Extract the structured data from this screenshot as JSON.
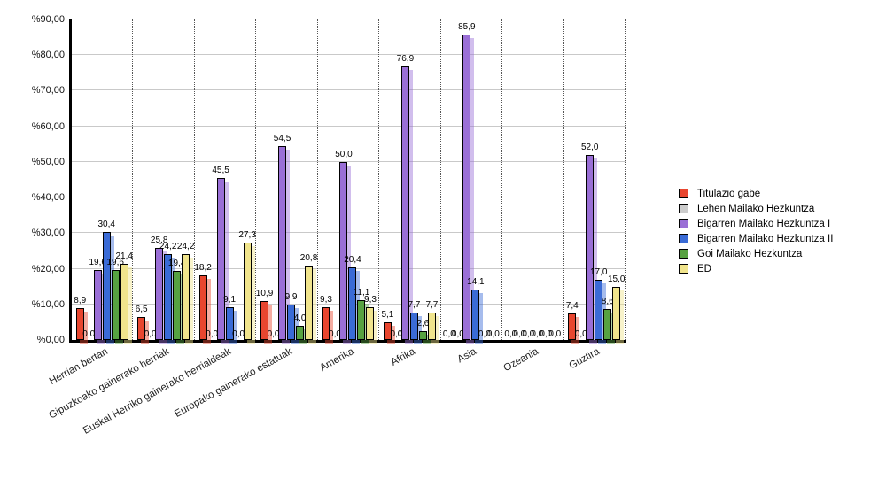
{
  "chart_data": {
    "type": "bar",
    "title": "",
    "xlabel": "",
    "ylabel": "",
    "ylim": [
      0,
      90
    ],
    "y_tick_step": 10,
    "y_ticks": [
      "%0,00",
      "%10,00",
      "%20,00",
      "%30,00",
      "%40,00",
      "%50,00",
      "%60,00",
      "%70,00",
      "%80,00",
      "%90,00"
    ],
    "categories": [
      "Herrian bertan",
      "Gipuzkoako gainerako herriak",
      "Euskal Herriko gainerako herrialdeak",
      "Europako gainerako estatuak",
      "Amerika",
      "Afrika",
      "Asia",
      "Ozeania",
      "Guztira"
    ],
    "series": [
      {
        "name": "Titulazio gabe",
        "color": "#E8462F",
        "values": [
          8.9,
          6.5,
          18.2,
          10.9,
          9.3,
          5.1,
          0.0,
          0.0,
          7.4
        ]
      },
      {
        "name": "Lehen Mailako Hezkuntza",
        "color": "#CCCCCC",
        "values": [
          0.0,
          0.0,
          0.0,
          0.0,
          0.0,
          0.0,
          0.0,
          0.0,
          0.0
        ]
      },
      {
        "name": "Bigarren Mailako Hezkuntza I",
        "color": "#9A6FD6",
        "values": [
          19.6,
          25.8,
          45.5,
          54.5,
          50.0,
          76.9,
          85.9,
          0.0,
          52.0
        ]
      },
      {
        "name": "Bigarren Mailako Hezkuntza II",
        "color": "#3A6BD6",
        "values": [
          30.4,
          24.2,
          9.1,
          9.9,
          20.4,
          7.7,
          14.1,
          0.0,
          17.0
        ]
      },
      {
        "name": "Goi Mailako Hezkuntza",
        "color": "#57A241",
        "values": [
          19.6,
          19.4,
          0.0,
          4.0,
          11.1,
          2.6,
          0.0,
          0.0,
          8.6
        ]
      },
      {
        "name": "ED",
        "color": "#F0E48C",
        "values": [
          21.4,
          24.2,
          27.3,
          20.8,
          9.3,
          7.7,
          0.0,
          0.0,
          15.0
        ]
      }
    ],
    "value_label_decimal_separator": ",",
    "grid": {
      "horizontal": "solid-gray",
      "vertical_group_separators": "dotted-black"
    },
    "legend_position": "right"
  },
  "colors": {
    "background": "#FFFFFF",
    "axis": "#000000",
    "gridline": "#C9C9C9",
    "value_label": "#000000"
  }
}
